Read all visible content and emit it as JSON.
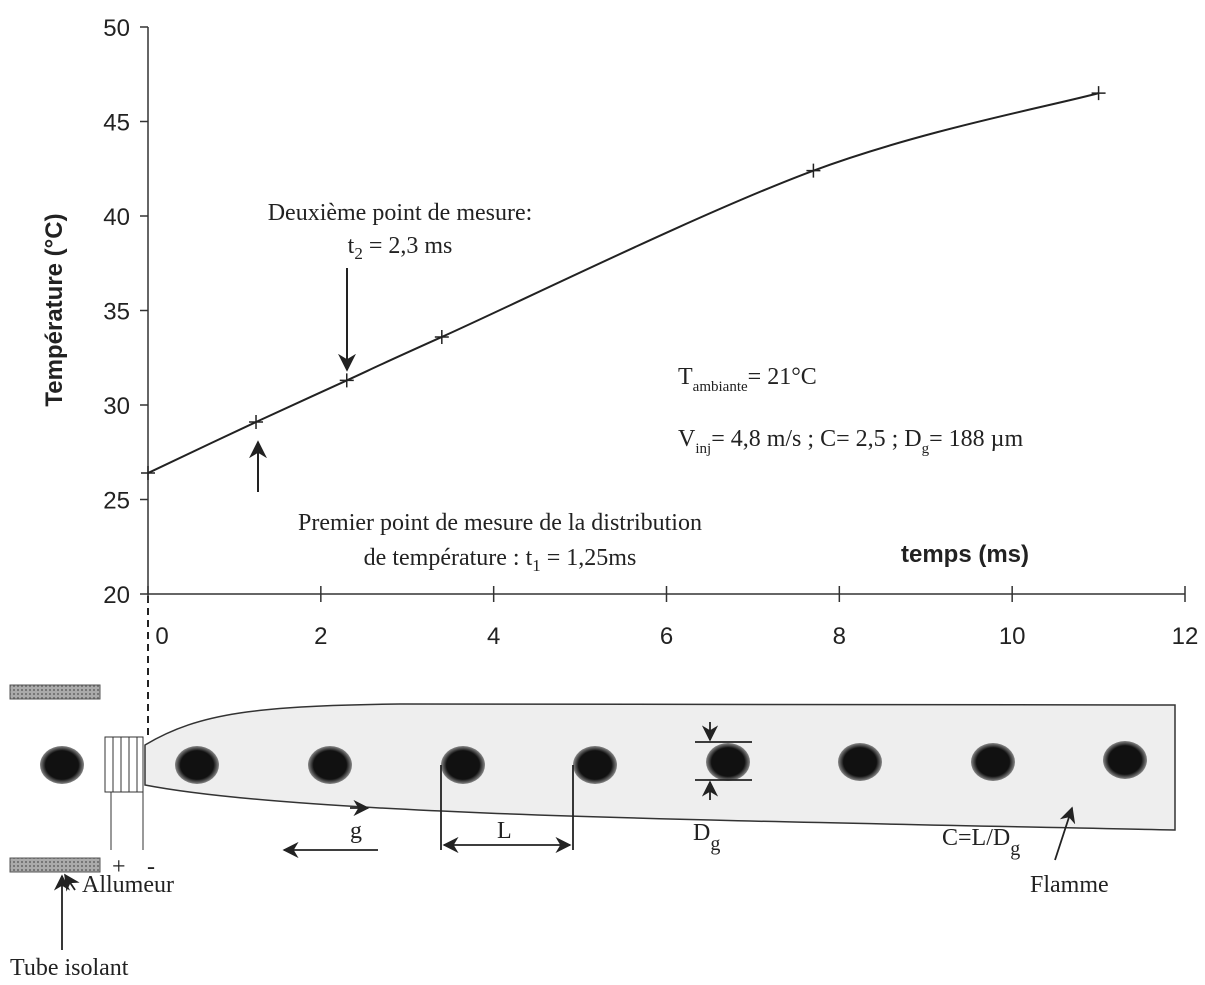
{
  "chart_data": {
    "type": "line",
    "y_label": "Température (°C)",
    "x_label": "temps (ms)",
    "x": [
      0,
      1.25,
      2.3,
      3.4,
      7.7,
      11
    ],
    "values": [
      26.4,
      29.1,
      31.3,
      33.6,
      42.4,
      46.5
    ],
    "color": "#222",
    "xlim": [
      0,
      12
    ],
    "ylim": [
      20,
      50
    ],
    "xticks": [
      0,
      2,
      4,
      6,
      8,
      10,
      12
    ],
    "yticks": [
      20,
      25,
      30,
      35,
      40,
      45,
      50
    ],
    "annotations": {
      "second_point": {
        "line1": "Deuxième point de mesure:",
        "t": "t",
        "sub": "2",
        "rest": " = 2,3 ms"
      },
      "first_point": {
        "line1": "Premier point de mesure de la distribution",
        "pre": "de température : t",
        "sub": "1",
        "rest": " = 1,25ms"
      },
      "ambient": {
        "T": "T",
        "sub": "ambiante",
        "rest": "= 21°C"
      },
      "conditions": {
        "V": "V",
        "sub": "inj",
        "mid": "= 4,8 m/s ; C= 2,5 ; D",
        "sub2": "g",
        "rest": "= 188 µm"
      }
    }
  },
  "diagram": {
    "tube": "Tube isolant",
    "igniter": "Allumeur",
    "flame": "Flamme",
    "plus": "+",
    "minus": "-",
    "L": "L",
    "g": "g",
    "D": "D",
    "D_sub": "g",
    "C": "C=L/D",
    "C_sub": "g"
  }
}
